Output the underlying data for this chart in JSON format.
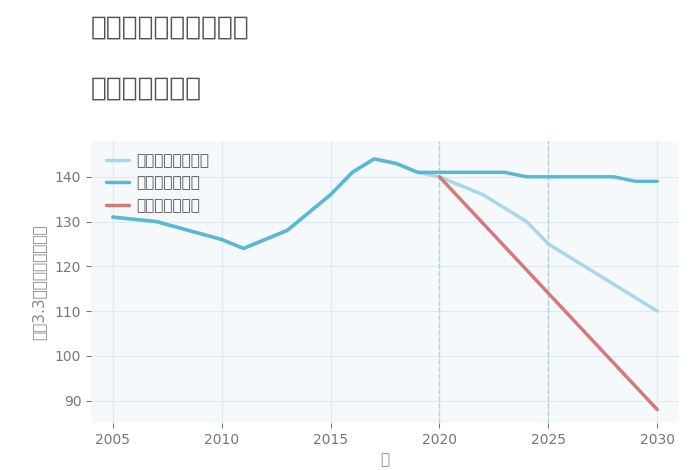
{
  "title_line1": "兵庫県西宮市大屋町の",
  "title_line2": "土地の価格推移",
  "xlabel": "年",
  "ylabel": "坪（3.3㎡）単価（万円）",
  "xlim": [
    2004,
    2031
  ],
  "ylim": [
    85,
    148
  ],
  "yticks": [
    90,
    100,
    110,
    120,
    130,
    140
  ],
  "xticks": [
    2005,
    2010,
    2015,
    2020,
    2025,
    2030
  ],
  "good_scenario": {
    "x": [
      2005,
      2007,
      2010,
      2011,
      2012,
      2013,
      2015,
      2016,
      2017,
      2018,
      2019,
      2020,
      2021,
      2022,
      2023,
      2024,
      2025,
      2026,
      2027,
      2028,
      2029,
      2030
    ],
    "y": [
      131,
      130,
      126,
      124,
      126,
      128,
      136,
      141,
      144,
      143,
      141,
      141,
      141,
      141,
      141,
      140,
      140,
      140,
      140,
      140,
      139,
      139
    ],
    "color": "#5bb8d4",
    "linewidth": 2.5,
    "label": "グッドシナリオ"
  },
  "bad_scenario": {
    "x": [
      2020,
      2030
    ],
    "y": [
      140,
      88
    ],
    "color": "#d47a7a",
    "linewidth": 2.5,
    "label": "バッドシナリオ"
  },
  "normal_scenario": {
    "x": [
      2005,
      2007,
      2010,
      2011,
      2012,
      2013,
      2015,
      2016,
      2017,
      2018,
      2019,
      2020,
      2021,
      2022,
      2023,
      2024,
      2025,
      2026,
      2027,
      2028,
      2029,
      2030
    ],
    "y": [
      131,
      130,
      126,
      124,
      126,
      128,
      136,
      141,
      144,
      143,
      141,
      140,
      138,
      136,
      133,
      130,
      125,
      122,
      119,
      116,
      113,
      110
    ],
    "color": "#a8d8e8",
    "linewidth": 2.5,
    "label": "ノーマルシナリオ"
  },
  "vline_x": [
    2020,
    2025
  ],
  "vline_color": "#b0cfe0",
  "vline_style": "--",
  "grid_color": "#ddeaf2",
  "bg_color": "#f5f9fc",
  "title_color": "#555555",
  "axis_color": "#888888",
  "tick_color": "#777777",
  "legend_color": "#555555",
  "title_fontsize": 19,
  "axis_label_fontsize": 11,
  "tick_fontsize": 10,
  "legend_fontsize": 11
}
